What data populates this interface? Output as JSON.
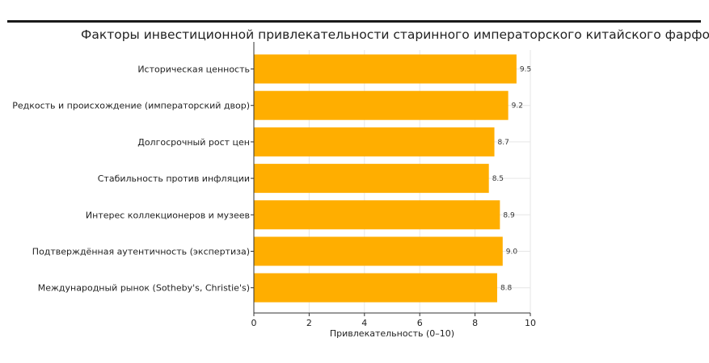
{
  "colors": {
    "bar": "#FFAE00",
    "grid": "#e6e6e6",
    "axis": "#333333"
  },
  "chart_data": {
    "type": "bar",
    "orientation": "horizontal",
    "title": "Факторы инвестиционной привлекательности старинного императорского китайского фарфора",
    "xlabel": "Привлекательность (0–10)",
    "ylabel": "",
    "xlim": [
      0,
      10
    ],
    "xticks": [
      0,
      2,
      4,
      6,
      8,
      10
    ],
    "grid": true,
    "categories": [
      "Историческая ценность",
      "Редкость и происхождение (императорский двор)",
      "Долгосрочный рост цен",
      "Стабильность против инфляции",
      "Интерес коллекционеров и музеев",
      "Подтверждённая аутентичность (экспертиза)",
      "Международный рынок (Sotheby's, Christie's)"
    ],
    "values": [
      9.5,
      9.2,
      8.7,
      8.5,
      8.9,
      9.0,
      8.8
    ],
    "value_labels": [
      "9.5",
      "9.2",
      "8.7",
      "8.5",
      "8.9",
      "9.0",
      "8.8"
    ]
  }
}
